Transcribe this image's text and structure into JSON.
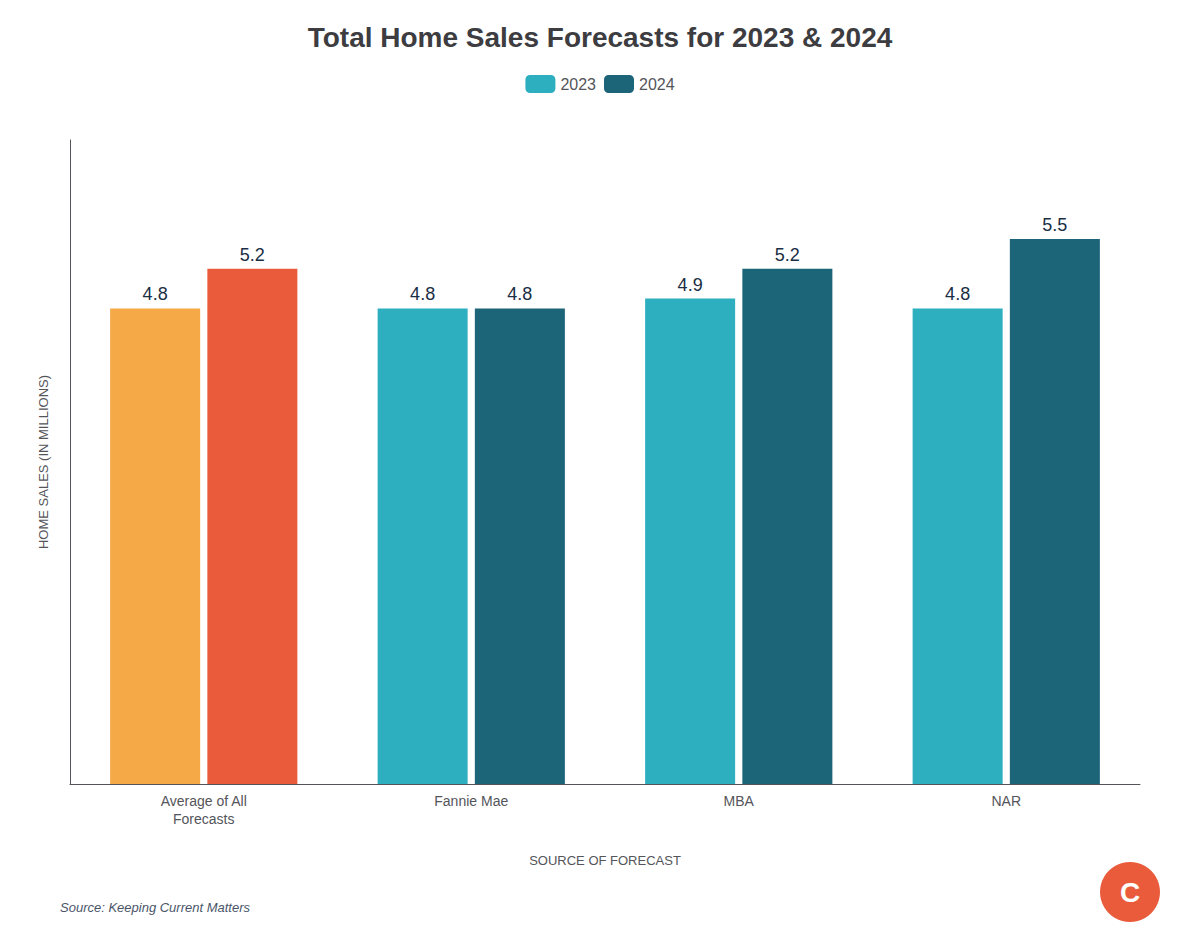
{
  "chart_data": {
    "type": "bar",
    "title": "Total Home Sales Forecasts for 2023 & 2024",
    "xlabel": "SOURCE OF FORECAST",
    "ylabel": "HOME SALES (IN MILLIONS)",
    "categories": [
      "Average of All\nForecasts",
      "Fannie Mae",
      "MBA",
      "NAR"
    ],
    "series": [
      {
        "name": "2023",
        "colors": [
          "#F5A947",
          "#2EAFC0",
          "#2EAFC0",
          "#2EAFC0"
        ],
        "values": [
          4.8,
          4.8,
          4.9,
          4.8
        ]
      },
      {
        "name": "2024",
        "colors": [
          "#E95B3B",
          "#1C6478",
          "#1C6478",
          "#1C6478"
        ],
        "values": [
          5.2,
          4.8,
          5.2,
          5.5
        ]
      }
    ],
    "ylim": [
      0,
      6.5
    ],
    "grid": false,
    "legend": "top",
    "data_labels": true,
    "tick_labels": "x",
    "annotations": [
      "Source: Keeping Current Matters",
      "C"
    ]
  }
}
